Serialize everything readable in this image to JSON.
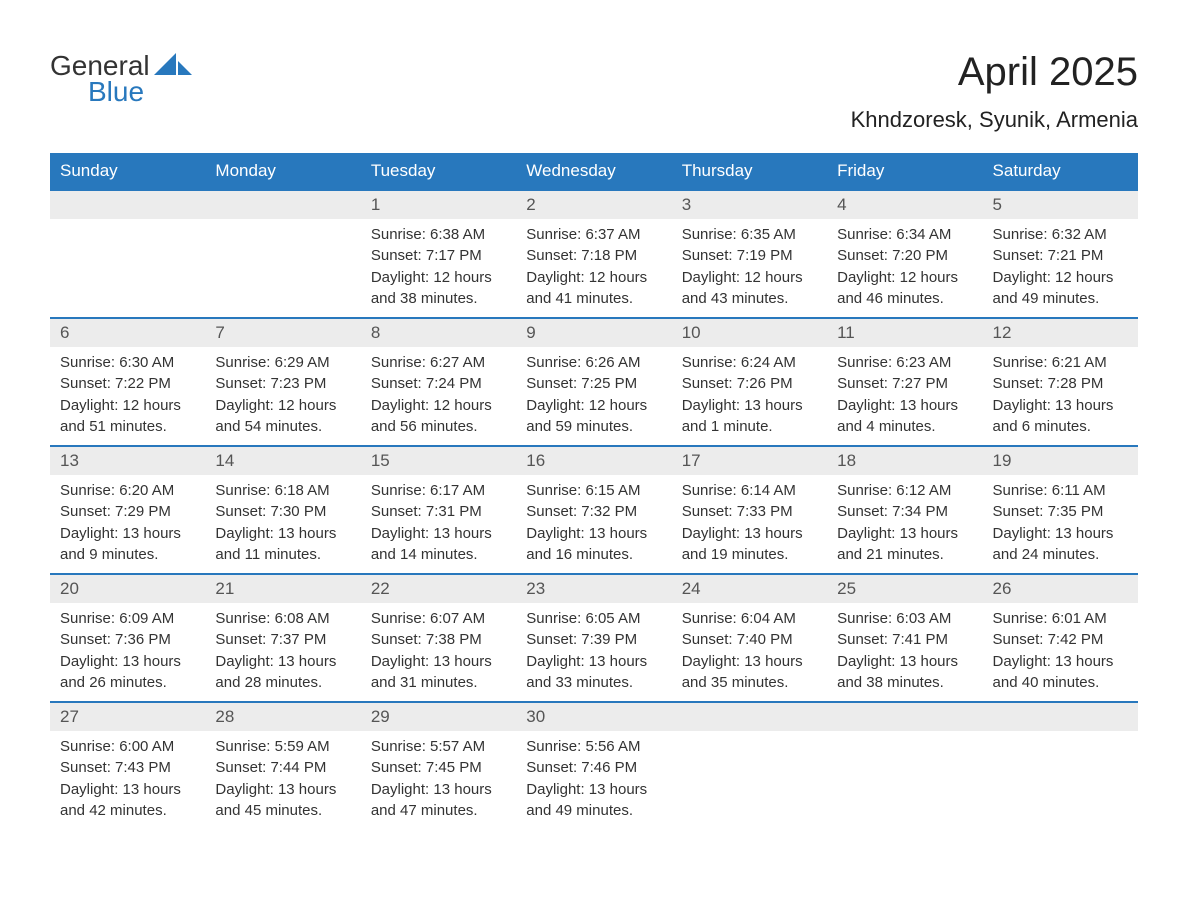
{
  "logo": {
    "text_general": "General",
    "text_blue": "Blue",
    "icon_color": "#2878bd"
  },
  "title": {
    "month": "April 2025",
    "location": "Khndzoresk, Syunik, Armenia"
  },
  "colors": {
    "header_bg": "#2878bd",
    "header_text": "#ffffff",
    "daynum_bg": "#ececec",
    "daynum_text": "#555555",
    "body_text": "#333333",
    "border": "#2878bd"
  },
  "weekdays": [
    "Sunday",
    "Monday",
    "Tuesday",
    "Wednesday",
    "Thursday",
    "Friday",
    "Saturday"
  ],
  "weeks": [
    [
      {
        "day": "",
        "sunrise": "",
        "sunset": "",
        "daylight1": "",
        "daylight2": ""
      },
      {
        "day": "",
        "sunrise": "",
        "sunset": "",
        "daylight1": "",
        "daylight2": ""
      },
      {
        "day": "1",
        "sunrise": "Sunrise: 6:38 AM",
        "sunset": "Sunset: 7:17 PM",
        "daylight1": "Daylight: 12 hours",
        "daylight2": "and 38 minutes."
      },
      {
        "day": "2",
        "sunrise": "Sunrise: 6:37 AM",
        "sunset": "Sunset: 7:18 PM",
        "daylight1": "Daylight: 12 hours",
        "daylight2": "and 41 minutes."
      },
      {
        "day": "3",
        "sunrise": "Sunrise: 6:35 AM",
        "sunset": "Sunset: 7:19 PM",
        "daylight1": "Daylight: 12 hours",
        "daylight2": "and 43 minutes."
      },
      {
        "day": "4",
        "sunrise": "Sunrise: 6:34 AM",
        "sunset": "Sunset: 7:20 PM",
        "daylight1": "Daylight: 12 hours",
        "daylight2": "and 46 minutes."
      },
      {
        "day": "5",
        "sunrise": "Sunrise: 6:32 AM",
        "sunset": "Sunset: 7:21 PM",
        "daylight1": "Daylight: 12 hours",
        "daylight2": "and 49 minutes."
      }
    ],
    [
      {
        "day": "6",
        "sunrise": "Sunrise: 6:30 AM",
        "sunset": "Sunset: 7:22 PM",
        "daylight1": "Daylight: 12 hours",
        "daylight2": "and 51 minutes."
      },
      {
        "day": "7",
        "sunrise": "Sunrise: 6:29 AM",
        "sunset": "Sunset: 7:23 PM",
        "daylight1": "Daylight: 12 hours",
        "daylight2": "and 54 minutes."
      },
      {
        "day": "8",
        "sunrise": "Sunrise: 6:27 AM",
        "sunset": "Sunset: 7:24 PM",
        "daylight1": "Daylight: 12 hours",
        "daylight2": "and 56 minutes."
      },
      {
        "day": "9",
        "sunrise": "Sunrise: 6:26 AM",
        "sunset": "Sunset: 7:25 PM",
        "daylight1": "Daylight: 12 hours",
        "daylight2": "and 59 minutes."
      },
      {
        "day": "10",
        "sunrise": "Sunrise: 6:24 AM",
        "sunset": "Sunset: 7:26 PM",
        "daylight1": "Daylight: 13 hours",
        "daylight2": "and 1 minute."
      },
      {
        "day": "11",
        "sunrise": "Sunrise: 6:23 AM",
        "sunset": "Sunset: 7:27 PM",
        "daylight1": "Daylight: 13 hours",
        "daylight2": "and 4 minutes."
      },
      {
        "day": "12",
        "sunrise": "Sunrise: 6:21 AM",
        "sunset": "Sunset: 7:28 PM",
        "daylight1": "Daylight: 13 hours",
        "daylight2": "and 6 minutes."
      }
    ],
    [
      {
        "day": "13",
        "sunrise": "Sunrise: 6:20 AM",
        "sunset": "Sunset: 7:29 PM",
        "daylight1": "Daylight: 13 hours",
        "daylight2": "and 9 minutes."
      },
      {
        "day": "14",
        "sunrise": "Sunrise: 6:18 AM",
        "sunset": "Sunset: 7:30 PM",
        "daylight1": "Daylight: 13 hours",
        "daylight2": "and 11 minutes."
      },
      {
        "day": "15",
        "sunrise": "Sunrise: 6:17 AM",
        "sunset": "Sunset: 7:31 PM",
        "daylight1": "Daylight: 13 hours",
        "daylight2": "and 14 minutes."
      },
      {
        "day": "16",
        "sunrise": "Sunrise: 6:15 AM",
        "sunset": "Sunset: 7:32 PM",
        "daylight1": "Daylight: 13 hours",
        "daylight2": "and 16 minutes."
      },
      {
        "day": "17",
        "sunrise": "Sunrise: 6:14 AM",
        "sunset": "Sunset: 7:33 PM",
        "daylight1": "Daylight: 13 hours",
        "daylight2": "and 19 minutes."
      },
      {
        "day": "18",
        "sunrise": "Sunrise: 6:12 AM",
        "sunset": "Sunset: 7:34 PM",
        "daylight1": "Daylight: 13 hours",
        "daylight2": "and 21 minutes."
      },
      {
        "day": "19",
        "sunrise": "Sunrise: 6:11 AM",
        "sunset": "Sunset: 7:35 PM",
        "daylight1": "Daylight: 13 hours",
        "daylight2": "and 24 minutes."
      }
    ],
    [
      {
        "day": "20",
        "sunrise": "Sunrise: 6:09 AM",
        "sunset": "Sunset: 7:36 PM",
        "daylight1": "Daylight: 13 hours",
        "daylight2": "and 26 minutes."
      },
      {
        "day": "21",
        "sunrise": "Sunrise: 6:08 AM",
        "sunset": "Sunset: 7:37 PM",
        "daylight1": "Daylight: 13 hours",
        "daylight2": "and 28 minutes."
      },
      {
        "day": "22",
        "sunrise": "Sunrise: 6:07 AM",
        "sunset": "Sunset: 7:38 PM",
        "daylight1": "Daylight: 13 hours",
        "daylight2": "and 31 minutes."
      },
      {
        "day": "23",
        "sunrise": "Sunrise: 6:05 AM",
        "sunset": "Sunset: 7:39 PM",
        "daylight1": "Daylight: 13 hours",
        "daylight2": "and 33 minutes."
      },
      {
        "day": "24",
        "sunrise": "Sunrise: 6:04 AM",
        "sunset": "Sunset: 7:40 PM",
        "daylight1": "Daylight: 13 hours",
        "daylight2": "and 35 minutes."
      },
      {
        "day": "25",
        "sunrise": "Sunrise: 6:03 AM",
        "sunset": "Sunset: 7:41 PM",
        "daylight1": "Daylight: 13 hours",
        "daylight2": "and 38 minutes."
      },
      {
        "day": "26",
        "sunrise": "Sunrise: 6:01 AM",
        "sunset": "Sunset: 7:42 PM",
        "daylight1": "Daylight: 13 hours",
        "daylight2": "and 40 minutes."
      }
    ],
    [
      {
        "day": "27",
        "sunrise": "Sunrise: 6:00 AM",
        "sunset": "Sunset: 7:43 PM",
        "daylight1": "Daylight: 13 hours",
        "daylight2": "and 42 minutes."
      },
      {
        "day": "28",
        "sunrise": "Sunrise: 5:59 AM",
        "sunset": "Sunset: 7:44 PM",
        "daylight1": "Daylight: 13 hours",
        "daylight2": "and 45 minutes."
      },
      {
        "day": "29",
        "sunrise": "Sunrise: 5:57 AM",
        "sunset": "Sunset: 7:45 PM",
        "daylight1": "Daylight: 13 hours",
        "daylight2": "and 47 minutes."
      },
      {
        "day": "30",
        "sunrise": "Sunrise: 5:56 AM",
        "sunset": "Sunset: 7:46 PM",
        "daylight1": "Daylight: 13 hours",
        "daylight2": "and 49 minutes."
      },
      {
        "day": "",
        "sunrise": "",
        "sunset": "",
        "daylight1": "",
        "daylight2": ""
      },
      {
        "day": "",
        "sunrise": "",
        "sunset": "",
        "daylight1": "",
        "daylight2": ""
      },
      {
        "day": "",
        "sunrise": "",
        "sunset": "",
        "daylight1": "",
        "daylight2": ""
      }
    ]
  ]
}
